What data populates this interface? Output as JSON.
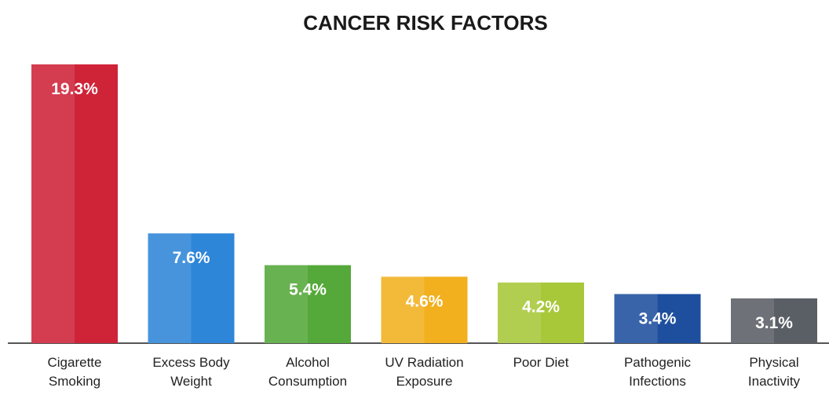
{
  "chart_data": {
    "type": "bar",
    "title": "CANCER RISK FACTORS",
    "categories": [
      "Cigarette Smoking",
      "Excess Body Weight",
      "Alcohol Consumption",
      "UV Radiation Exposure",
      "Poor Diet",
      "Pathogenic Infections",
      "Physical Inactivity"
    ],
    "values": [
      19.3,
      7.6,
      5.4,
      4.6,
      4.2,
      3.4,
      3.1
    ],
    "value_labels": [
      "19.3%",
      "7.6%",
      "5.4%",
      "4.6%",
      "4.2%",
      "3.4%",
      "3.1%"
    ],
    "colors": [
      "#cf2338",
      "#2e86d8",
      "#55a83a",
      "#f2b01e",
      "#a8c83a",
      "#1e4f9e",
      "#5a5f66"
    ]
  }
}
